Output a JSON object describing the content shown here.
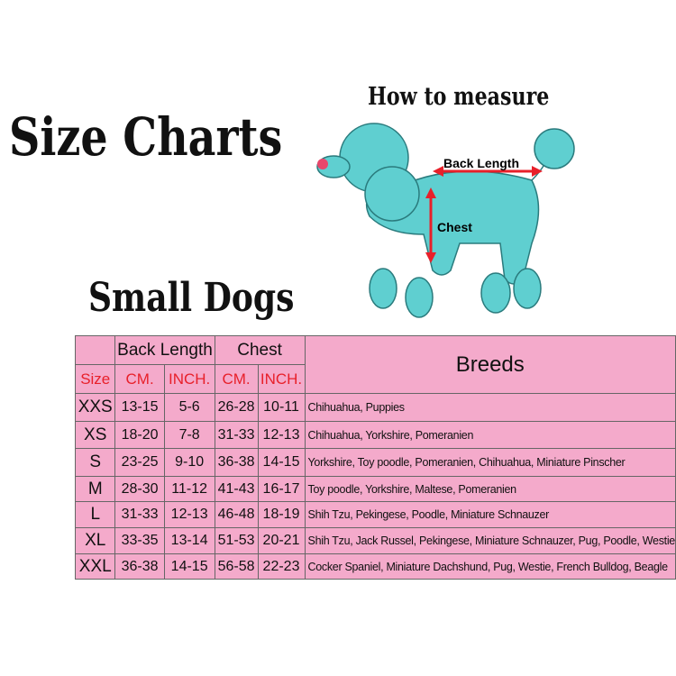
{
  "title": "Size Charts",
  "subtitle": "Small Dogs",
  "diagram": {
    "heading": "How to measure",
    "back_length_label": "Back Length",
    "chest_label": "Chest"
  },
  "colors": {
    "table_bg": "#f4aacb",
    "unit_text": "#e8202a",
    "dog": "#5fcfd0",
    "arrow": "#e8202a"
  },
  "table": {
    "group_headers": {
      "back_length": "Back Length",
      "chest": "Chest",
      "breeds": "Breeds"
    },
    "sub_headers": {
      "size": "Size",
      "back_cm": "CM.",
      "back_inch": "INCH.",
      "chest_cm": "CM.",
      "chest_inch": "INCH."
    },
    "rows": [
      {
        "size": "XXS",
        "back_cm": "13-15",
        "back_inch": "5-6",
        "chest_cm": "26-28",
        "chest_inch": "10-11",
        "breeds": "Chihuahua, Puppies"
      },
      {
        "size": "XS",
        "back_cm": "18-20",
        "back_inch": "7-8",
        "chest_cm": "31-33",
        "chest_inch": "12-13",
        "breeds": "Chihuahua, Yorkshire, Pomeranien"
      },
      {
        "size": "S",
        "back_cm": "23-25",
        "back_inch": "9-10",
        "chest_cm": "36-38",
        "chest_inch": "14-15",
        "breeds": "Yorkshire, Toy poodle, Pomeranien, Chihuahua, Miniature Pinscher"
      },
      {
        "size": "M",
        "back_cm": "28-30",
        "back_inch": "11-12",
        "chest_cm": "41-43",
        "chest_inch": "16-17",
        "breeds": "Toy poodle, Yorkshire, Maltese, Pomeranien"
      },
      {
        "size": "L",
        "back_cm": "31-33",
        "back_inch": "12-13",
        "chest_cm": "46-48",
        "chest_inch": "18-19",
        "breeds": "Shih Tzu, Pekingese, Poodle, Miniature Schnauzer"
      },
      {
        "size": "XL",
        "back_cm": "33-35",
        "back_inch": "13-14",
        "chest_cm": "51-53",
        "chest_inch": "20-21",
        "breeds": "Shih Tzu, Jack Russel, Pekingese, Miniature Schnauzer, Pug, Poodle, Westie"
      },
      {
        "size": "XXL",
        "back_cm": "36-38",
        "back_inch": "14-15",
        "chest_cm": "56-58",
        "chest_inch": "22-23",
        "breeds": "Cocker Spaniel, Miniature Dachshund, Pug, Westie, French Bulldog, Beagle"
      }
    ]
  }
}
